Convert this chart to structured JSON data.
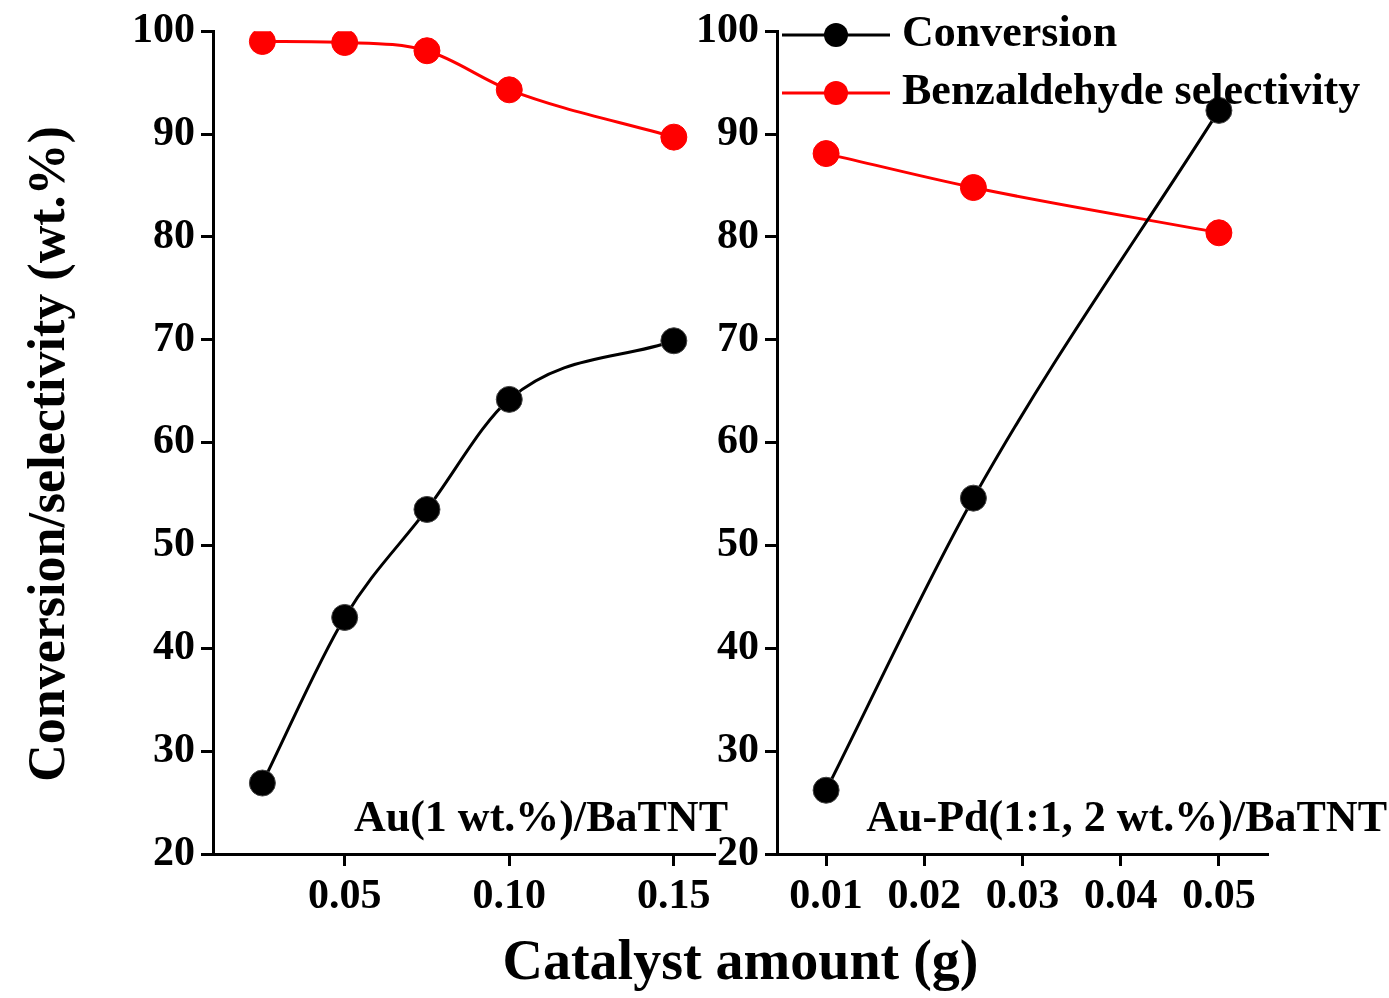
{
  "chart_data": [
    {
      "type": "line",
      "xlabel": "Catalyst amount (g)",
      "ylabel": "Conversion/selectivity (wt.%)",
      "x": [
        0.025,
        0.05,
        0.075,
        0.1,
        0.15
      ],
      "xlim": [
        0.01,
        0.1625
      ],
      "xticks": [
        {
          "value": 0.05,
          "label": "0.05"
        },
        {
          "value": 0.1,
          "label": "0.10"
        },
        {
          "value": 0.15,
          "label": "0.15"
        }
      ],
      "ylim": [
        20,
        100
      ],
      "yticks": [
        20,
        30,
        40,
        50,
        60,
        70,
        80,
        90,
        100
      ],
      "grid": false,
      "legend": false,
      "marker": "circle",
      "line_style": "solid",
      "annotations": [
        "Au(1 wt.%)/BaTNT"
      ],
      "series": [
        {
          "color": "#000000",
          "values": [
            26.9,
            43,
            53.5,
            64.2,
            69.9
          ]
        },
        {
          "color": "#ff0000",
          "values": [
            99,
            98.9,
            98.1,
            94.3,
            89.7
          ]
        }
      ]
    },
    {
      "type": "line",
      "x": [
        0.01,
        0.025,
        0.05
      ],
      "xlim": [
        0.005,
        0.055
      ],
      "xticks": [
        {
          "value": 0.01,
          "label": "0.01"
        },
        {
          "value": 0.02,
          "label": "0.02"
        },
        {
          "value": 0.03,
          "label": "0.03"
        },
        {
          "value": 0.04,
          "label": "0.04"
        },
        {
          "value": 0.05,
          "label": "0.05"
        }
      ],
      "ylim": [
        20,
        100
      ],
      "yticks": [
        20,
        30,
        40,
        50,
        60,
        70,
        80,
        90,
        100
      ],
      "grid": false,
      "legend": "top right",
      "marker": "circle",
      "line_style": "solid",
      "annotations": [
        "Au-Pd(1:1, 2 wt.%)/BaTNT"
      ],
      "series": [
        {
          "name": "Conversion",
          "color": "#000000",
          "values": [
            26.2,
            54.6,
            92.3
          ]
        },
        {
          "name": "Benzaldehyde selectivity",
          "color": "#ff0000",
          "values": [
            88.1,
            84.8,
            80.4
          ]
        }
      ]
    }
  ]
}
